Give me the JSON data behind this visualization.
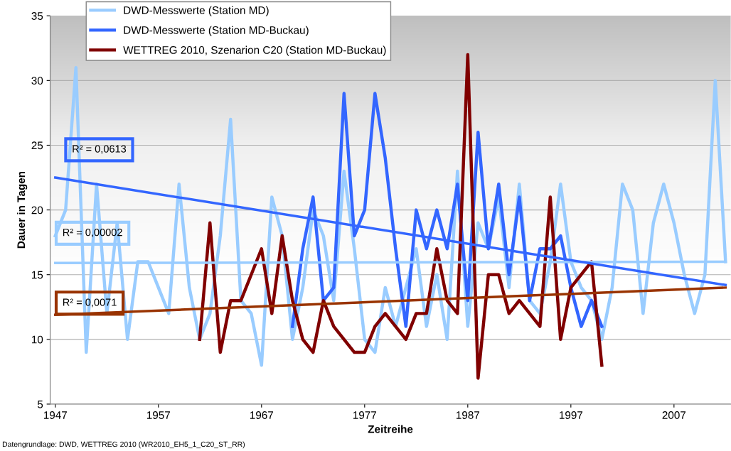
{
  "chart_data": {
    "type": "line",
    "xlabel": "Zeitreihe",
    "ylabel": "Dauer in Tagen",
    "xlim": [
      1946.5,
      2012.5
    ],
    "xticks": [
      1947,
      1957,
      1967,
      1977,
      1987,
      1997,
      2007
    ],
    "ylim": [
      5,
      35
    ],
    "yticks": [
      5,
      10,
      15,
      20,
      25,
      30,
      35
    ],
    "grid": "y",
    "legend": "top left",
    "series": [
      {
        "name": "DWD-Messwerte (Station MD)",
        "color": "#99ccff",
        "x": [
          1947,
          1948,
          1949,
          1950,
          1951,
          1952,
          1953,
          1954,
          1955,
          1956,
          1957,
          1958,
          1959,
          1960,
          1961,
          1962,
          1963,
          1964,
          1965,
          1966,
          1967,
          1968,
          1969,
          1970,
          1971,
          1972,
          1973,
          1974,
          1975,
          1976,
          1977,
          1978,
          1979,
          1980,
          1981,
          1982,
          1983,
          1984,
          1985,
          1986,
          1987,
          1988,
          1989,
          1990,
          1991,
          1992,
          1993,
          1994,
          1995,
          1996,
          1997,
          1998,
          1999,
          2000,
          2001,
          2002,
          2003,
          2004,
          2005,
          2006,
          2007,
          2008,
          2009,
          2010,
          2011,
          2012
        ],
        "values": [
          18,
          20,
          31,
          9,
          22,
          12,
          19,
          10,
          16,
          16,
          14,
          12,
          22,
          14,
          10,
          12,
          18,
          27,
          13,
          12,
          8,
          21,
          18,
          10,
          14,
          20,
          18,
          13,
          23,
          17,
          10,
          9,
          14,
          11,
          14,
          17,
          11,
          15,
          10,
          23,
          11,
          19,
          17,
          21,
          14,
          22,
          13,
          12,
          16,
          22,
          16,
          14,
          13,
          10,
          14,
          22,
          20,
          12,
          19,
          22,
          19,
          15,
          12,
          15,
          30,
          16
        ]
      },
      {
        "name": "DWD-Messwerte (Station MD-Buckau)",
        "color": "#3366ff",
        "x": [
          1970,
          1971,
          1972,
          1973,
          1974,
          1975,
          1976,
          1977,
          1978,
          1979,
          1980,
          1981,
          1982,
          1983,
          1984,
          1985,
          1986,
          1987,
          1988,
          1989,
          1990,
          1991,
          1992,
          1993,
          1994,
          1995,
          1996,
          1997,
          1998,
          1999,
          2000
        ],
        "values": [
          11,
          17,
          21,
          13,
          14,
          29,
          18,
          20,
          29,
          24,
          17,
          11,
          20,
          17,
          20,
          17,
          22,
          13,
          26,
          17,
          22,
          15,
          21,
          13,
          17,
          17,
          18,
          14,
          11,
          13,
          11
        ]
      },
      {
        "name": "WETTREG 2010, Szenarion C20 (Station MD-Buckau)",
        "color": "#800000",
        "x": [
          1961,
          1962,
          1963,
          1964,
          1965,
          1966,
          1967,
          1968,
          1969,
          1970,
          1971,
          1972,
          1973,
          1974,
          1975,
          1976,
          1977,
          1978,
          1979,
          1980,
          1981,
          1982,
          1983,
          1984,
          1985,
          1986,
          1987,
          1988,
          1989,
          1990,
          1991,
          1992,
          1993,
          1994,
          1995,
          1996,
          1997,
          1998,
          1999,
          2000
        ],
        "values": [
          10,
          19,
          9,
          13,
          13,
          15,
          17,
          12,
          18,
          13,
          10,
          9,
          13,
          11,
          10,
          9,
          9,
          11,
          12,
          11,
          10,
          12,
          12,
          17,
          13,
          12,
          32,
          7,
          15,
          15,
          12,
          13,
          12,
          11,
          21,
          10,
          14,
          15,
          16,
          8
        ]
      },
      {
        "color": "#99ccff",
        "x": [
          1947,
          2012
        ],
        "values": [
          15.9,
          16.0
        ]
      },
      {
        "color": "#3366ff",
        "x": [
          1947,
          2012
        ],
        "values": [
          22.5,
          14.2
        ]
      },
      {
        "color": "#993300",
        "x": [
          1947,
          2012
        ],
        "values": [
          11.9,
          14.0
        ]
      }
    ],
    "annotations": [
      "R² = 0,00002",
      "R² = 0,0613",
      "R² = 0,0071",
      "Datengrundlage: DWD, WETTREG 2010 (WR2010_EH5_1_C20_ST_RR)"
    ]
  }
}
